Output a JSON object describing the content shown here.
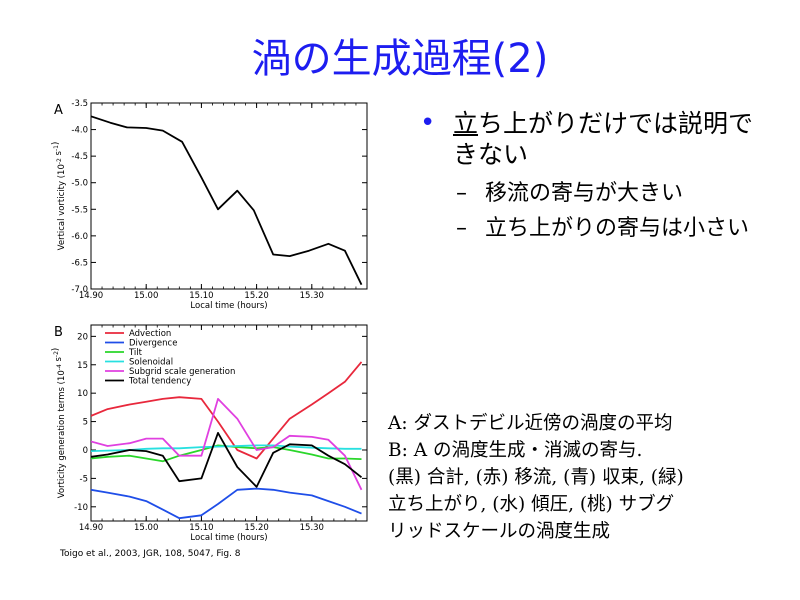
{
  "slide": {
    "title": "渦の生成過程(2)",
    "bullet_main": "立ち上がりだけでは説明できない",
    "sub_bullets": [
      "移流の寄与が大きい",
      "立ち上がりの寄与は小さい"
    ],
    "notes": [
      "A: ダストデビル近傍の渦度の平均",
      "B: A の渦度生成・消滅の寄与.",
      "(黒) 合計, (赤) 移流, (青) 収束, (緑)",
      "立ち上がり, (水) 傾圧, (桃) サブグ",
      "リッドスケールの渦度生成"
    ],
    "citation": "Toigo et al., 2003, JGR, 108, 5047, Fig. 8",
    "colors": {
      "title": "#1d1df0",
      "bullet": "#1d1df0"
    }
  },
  "chart_data": [
    {
      "type": "line",
      "panel_label": "A",
      "xlabel": "Local time (hours)",
      "ylabel": "Vertical vorticity (10^-2 s^-1)",
      "xlim": [
        14.9,
        15.4
      ],
      "ylim": [
        -7.0,
        -3.5
      ],
      "xticks": [
        "14.90",
        "15.00",
        "15.10",
        "15.20",
        "15.30"
      ],
      "yticks": [
        "-3.5",
        "-4.0",
        "-4.5",
        "-5.0",
        "-5.5",
        "-6.0",
        "-6.5",
        "-7.0"
      ],
      "grid": false,
      "series": [
        {
          "color": "#000000",
          "x": [
            14.9,
            14.935,
            14.965,
            15.0,
            15.03,
            15.065,
            15.1,
            15.13,
            15.165,
            15.195,
            15.23,
            15.26,
            15.295,
            15.33,
            15.36,
            15.39
          ],
          "y": [
            -3.75,
            -3.87,
            -3.96,
            -3.97,
            -4.02,
            -4.23,
            -4.9,
            -5.5,
            -5.15,
            -5.52,
            -6.35,
            -6.38,
            -6.28,
            -6.15,
            -6.28,
            -6.92
          ]
        }
      ]
    },
    {
      "type": "line",
      "panel_label": "B",
      "xlabel": "Local time (hours)",
      "ylabel": "Vorticity generation terms (10^-4 s^-2)",
      "xlim": [
        14.9,
        15.4
      ],
      "ylim": [
        -12.5,
        22
      ],
      "xticks": [
        "14.90",
        "15.00",
        "15.10",
        "15.20",
        "15.30"
      ],
      "yticks": [
        "20",
        "15",
        "10",
        "5",
        "0",
        "-5",
        "-10"
      ],
      "grid": false,
      "legend": "top-left",
      "series": [
        {
          "name": "Advection",
          "color": "#e8283c",
          "x": [
            14.9,
            14.93,
            14.97,
            15.0,
            15.03,
            15.06,
            15.1,
            15.13,
            15.165,
            15.2,
            15.23,
            15.26,
            15.3,
            15.33,
            15.36,
            15.39
          ],
          "y": [
            6.0,
            7.2,
            8.0,
            8.5,
            9.0,
            9.3,
            9.0,
            5.0,
            0.0,
            -1.5,
            2.0,
            5.5,
            8.0,
            10.0,
            12.0,
            15.5
          ]
        },
        {
          "name": "Divergence",
          "color": "#1f4ee8",
          "x": [
            14.9,
            14.93,
            14.97,
            15.0,
            15.03,
            15.06,
            15.1,
            15.13,
            15.165,
            15.2,
            15.23,
            15.26,
            15.3,
            15.33,
            15.36,
            15.39
          ],
          "y": [
            -7.0,
            -7.5,
            -8.2,
            -9.0,
            -10.5,
            -12.0,
            -11.5,
            -9.5,
            -7.0,
            -6.8,
            -7.0,
            -7.5,
            -8.0,
            -9.0,
            -10.0,
            -11.2
          ]
        },
        {
          "name": "Tilt",
          "color": "#2ad62a",
          "x": [
            14.9,
            14.93,
            14.97,
            15.0,
            15.03,
            15.06,
            15.1,
            15.13,
            15.165,
            15.2,
            15.23,
            15.26,
            15.3,
            15.33,
            15.36,
            15.39
          ],
          "y": [
            -1.5,
            -1.2,
            -1.0,
            -1.5,
            -2.0,
            -1.0,
            0.0,
            0.8,
            0.5,
            0.3,
            0.5,
            0.0,
            -0.8,
            -1.5,
            -1.5,
            -1.6
          ]
        },
        {
          "name": "Solenoidal",
          "color": "#28e0e0",
          "x": [
            14.9,
            14.93,
            14.97,
            15.0,
            15.03,
            15.06,
            15.1,
            15.13,
            15.165,
            15.2,
            15.23,
            15.26,
            15.3,
            15.33,
            15.36,
            15.39
          ],
          "y": [
            -0.2,
            -0.1,
            0.0,
            0.2,
            0.3,
            0.3,
            0.5,
            0.6,
            0.7,
            0.8,
            0.8,
            0.6,
            0.4,
            0.3,
            0.2,
            0.2
          ]
        },
        {
          "name": "Subgrid scale generation",
          "color": "#e040e0",
          "x": [
            14.9,
            14.93,
            14.97,
            15.0,
            15.03,
            15.06,
            15.1,
            15.13,
            15.165,
            15.2,
            15.23,
            15.26,
            15.3,
            15.33,
            15.36,
            15.39
          ],
          "y": [
            1.5,
            0.7,
            1.2,
            2.0,
            2.0,
            -1.0,
            -1.0,
            9.0,
            5.5,
            0.0,
            0.5,
            2.5,
            2.3,
            1.8,
            -1.0,
            -7.0
          ]
        },
        {
          "name": "Total tendency",
          "color": "#000000",
          "x": [
            14.9,
            14.93,
            14.97,
            15.0,
            15.03,
            15.06,
            15.1,
            15.13,
            15.165,
            15.2,
            15.23,
            15.26,
            15.3,
            15.33,
            15.36,
            15.39
          ],
          "y": [
            -1.2,
            -0.8,
            0.0,
            -0.2,
            -1.0,
            -5.5,
            -5.0,
            3.0,
            -3.0,
            -6.5,
            -0.5,
            1.0,
            0.8,
            -1.0,
            -2.5,
            -4.8
          ]
        }
      ]
    }
  ]
}
